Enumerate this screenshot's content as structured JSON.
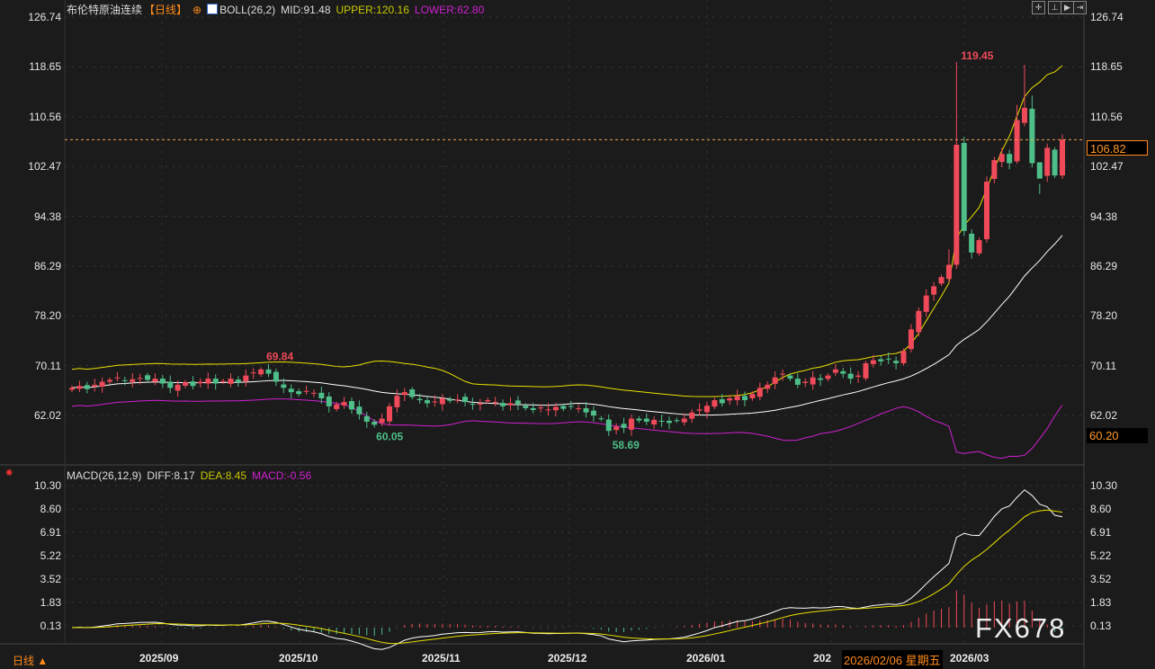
{
  "header": {
    "title": "布伦特原油连续",
    "period": "【日线】",
    "boll_label": "BOLL(26,2)",
    "mid": "MID:91.48",
    "upper": "UPPER:120.16",
    "lower": "LOWER:62.80"
  },
  "macd_header": {
    "label": "MACD(26,12,9)",
    "diff": "DIFF:8.17",
    "dea": "DEA:8.45",
    "macd": "MACD:-0.56"
  },
  "toolbar": {
    "icons": [
      "crosshair-icon",
      "zoom-y-icon",
      "play-icon",
      "move-right-icon"
    ]
  },
  "price_axis": [
    "126.74",
    "118.65",
    "110.56",
    "102.47",
    "94.38",
    "86.29",
    "78.20",
    "70.11",
    "62.02"
  ],
  "macd_axis": [
    "10.30",
    "8.60",
    "6.91",
    "5.22",
    "3.52",
    "1.83",
    "0.13"
  ],
  "current_price": "106.82",
  "lower_band_value": "60.20",
  "annotations": {
    "high1": "69.84",
    "low1": "60.05",
    "low2": "58.69",
    "peak": "119.45"
  },
  "date_axis": [
    "2025/09",
    "2025/10",
    "2025/11",
    "2025/12",
    "2026/01",
    "202",
    "2026/03"
  ],
  "cursor_date": "2026/02/06 星期五",
  "period_selector": "日线 ▲",
  "watermark": "FX678",
  "colors": {
    "up": "#f04a5a",
    "down": "#4fbf8a",
    "upper": "#e8e000",
    "mid": "#ffffff",
    "lower": "#d020d0",
    "accent": "#ff8a1a"
  },
  "chart_data": {
    "type": "candlestick",
    "closes": [
      66.5,
      66.8,
      66.3,
      67.0,
      67.5,
      67.8,
      68.2,
      67.6,
      67.9,
      68.1,
      67.8,
      68.0,
      67.2,
      66.5,
      67.0,
      67.4,
      66.8,
      67.5,
      68.0,
      67.2,
      67.6,
      68.0,
      67.4,
      68.5,
      69.0,
      69.5,
      68.8,
      67.5,
      66.5,
      65.8,
      65.5,
      66.0,
      65.7,
      64.8,
      63.5,
      63.8,
      64.2,
      63.0,
      62.2,
      61.0,
      60.5,
      61.5,
      63.5,
      65.2,
      65.8,
      65.0,
      64.5,
      64.0,
      64.3,
      64.8,
      64.4,
      64.6,
      64.2,
      63.8,
      64.0,
      64.5,
      64.2,
      63.5,
      64.0,
      63.9,
      63.2,
      62.9,
      63.3,
      63.0,
      63.4,
      63.1,
      63.5,
      63.2,
      62.5,
      62.0,
      61.5,
      59.5,
      60.2,
      60.0,
      61.5,
      61.2,
      61.0,
      61.3,
      61.0,
      60.8,
      61.2,
      61.5,
      62.5,
      63.0,
      63.6,
      64.5,
      64.0,
      64.8,
      65.2,
      64.5,
      65.5,
      66.5,
      67.0,
      68.2,
      68.8,
      68.0,
      67.0,
      67.5,
      68.2,
      67.8,
      68.5,
      69.5,
      68.8,
      68.0,
      68.5,
      70.5,
      71.0,
      70.8,
      71.2,
      70.5,
      72.5,
      76.0,
      79.0,
      81.5,
      83.0,
      84.5,
      86.5,
      106.0,
      92.0,
      88.5,
      90.5,
      100.0,
      103.5,
      104.5,
      103.0,
      110.0,
      112.0,
      103.0,
      100.5,
      105.5,
      101.0,
      106.82
    ],
    "high_marks": [
      {
        "index": 25,
        "value": 69.84
      },
      {
        "index": 117,
        "value": 119.45
      }
    ],
    "low_marks": [
      {
        "index": 40,
        "value": 60.05
      },
      {
        "index": 71,
        "value": 58.69
      }
    ],
    "ylim": [
      58,
      128
    ],
    "macd_ylim": [
      -1.5,
      10.8
    ],
    "indicators": [
      "BOLL(26,2)",
      "MACD(26,12,9)"
    ]
  }
}
